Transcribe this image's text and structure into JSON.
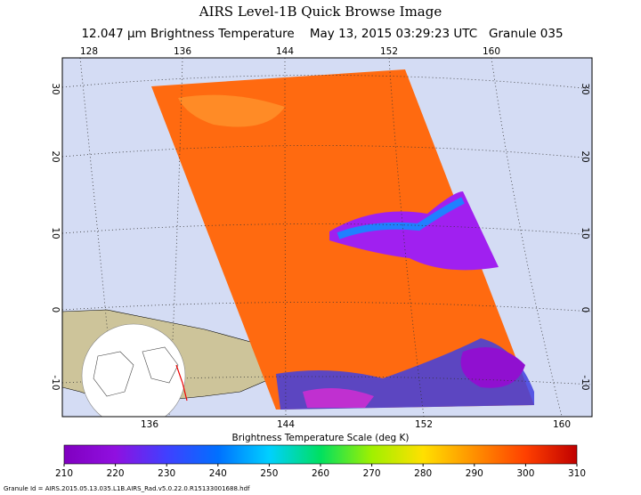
{
  "header": {
    "title": "AIRS Level-1B Quick Browse Image",
    "subtitle": "12.047 μm Brightness Temperature    May 13, 2015 03:29:23 UTC   Granule 035"
  },
  "map": {
    "top_lon_labels": [
      "128",
      "136",
      "144",
      "152",
      "160"
    ],
    "bottom_lon_labels": [
      "136",
      "144",
      "152",
      "160"
    ],
    "left_lat_labels": [
      "30",
      "20",
      "10",
      "0",
      "-10"
    ],
    "right_lat_labels": [
      "30",
      "20",
      "10",
      "0",
      "-10"
    ]
  },
  "colorbar": {
    "title": "Brightness Temperature Scale (deg K)",
    "ticks": [
      210,
      220,
      230,
      240,
      250,
      260,
      270,
      280,
      290,
      300,
      310
    ]
  },
  "footer": {
    "granule_id": "Granule Id = AIRS.2015.05.13.035.L1B.AIRS_Rad.v5.0.22.0.R15133001688.hdf"
  }
}
